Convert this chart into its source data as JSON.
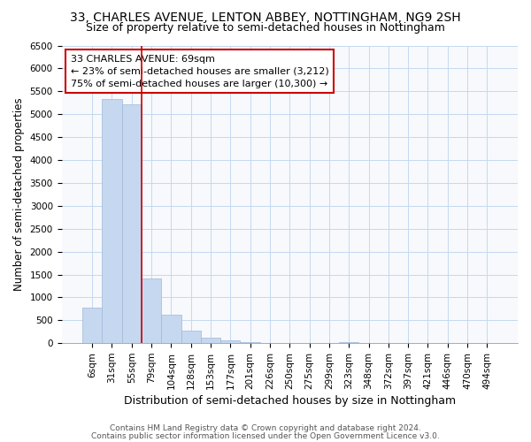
{
  "title": "33, CHARLES AVENUE, LENTON ABBEY, NOTTINGHAM, NG9 2SH",
  "subtitle": "Size of property relative to semi-detached houses in Nottingham",
  "xlabel": "Distribution of semi-detached houses by size in Nottingham",
  "ylabel": "Number of semi-detached properties",
  "footer_line1": "Contains HM Land Registry data © Crown copyright and database right 2024.",
  "footer_line2": "Contains public sector information licensed under the Open Government Licence v3.0.",
  "annotation_line1": "33 CHARLES AVENUE: 69sqm",
  "annotation_line2": "← 23% of semi-detached houses are smaller (3,212)",
  "annotation_line3": "75% of semi-detached houses are larger (10,300) →",
  "property_bin_index": 2,
  "categories": [
    "6sqm",
    "31sqm",
    "55sqm",
    "79sqm",
    "104sqm",
    "128sqm",
    "153sqm",
    "177sqm",
    "201sqm",
    "226sqm",
    "250sqm",
    "275sqm",
    "299sqm",
    "323sqm",
    "348sqm",
    "372sqm",
    "397sqm",
    "421sqm",
    "446sqm",
    "470sqm",
    "494sqm"
  ],
  "bar_values": [
    780,
    5330,
    5220,
    1420,
    620,
    270,
    120,
    70,
    30,
    10,
    5,
    0,
    0,
    30,
    0,
    0,
    0,
    0,
    0,
    0,
    0
  ],
  "bar_color": "#c5d8f0",
  "line_color": "#cc0000",
  "annotation_box_color": "#cc0000",
  "bg_color": "#f7f9fc",
  "grid_color": "#c5d8f0",
  "ylim": [
    0,
    6500
  ],
  "yticks": [
    0,
    500,
    1000,
    1500,
    2000,
    2500,
    3000,
    3500,
    4000,
    4500,
    5000,
    5500,
    6000,
    6500
  ],
  "title_fontsize": 10,
  "subtitle_fontsize": 9,
  "ylabel_fontsize": 8.5,
  "xlabel_fontsize": 9,
  "tick_fontsize": 7.5,
  "annotation_fontsize": 8,
  "footer_fontsize": 6.5
}
